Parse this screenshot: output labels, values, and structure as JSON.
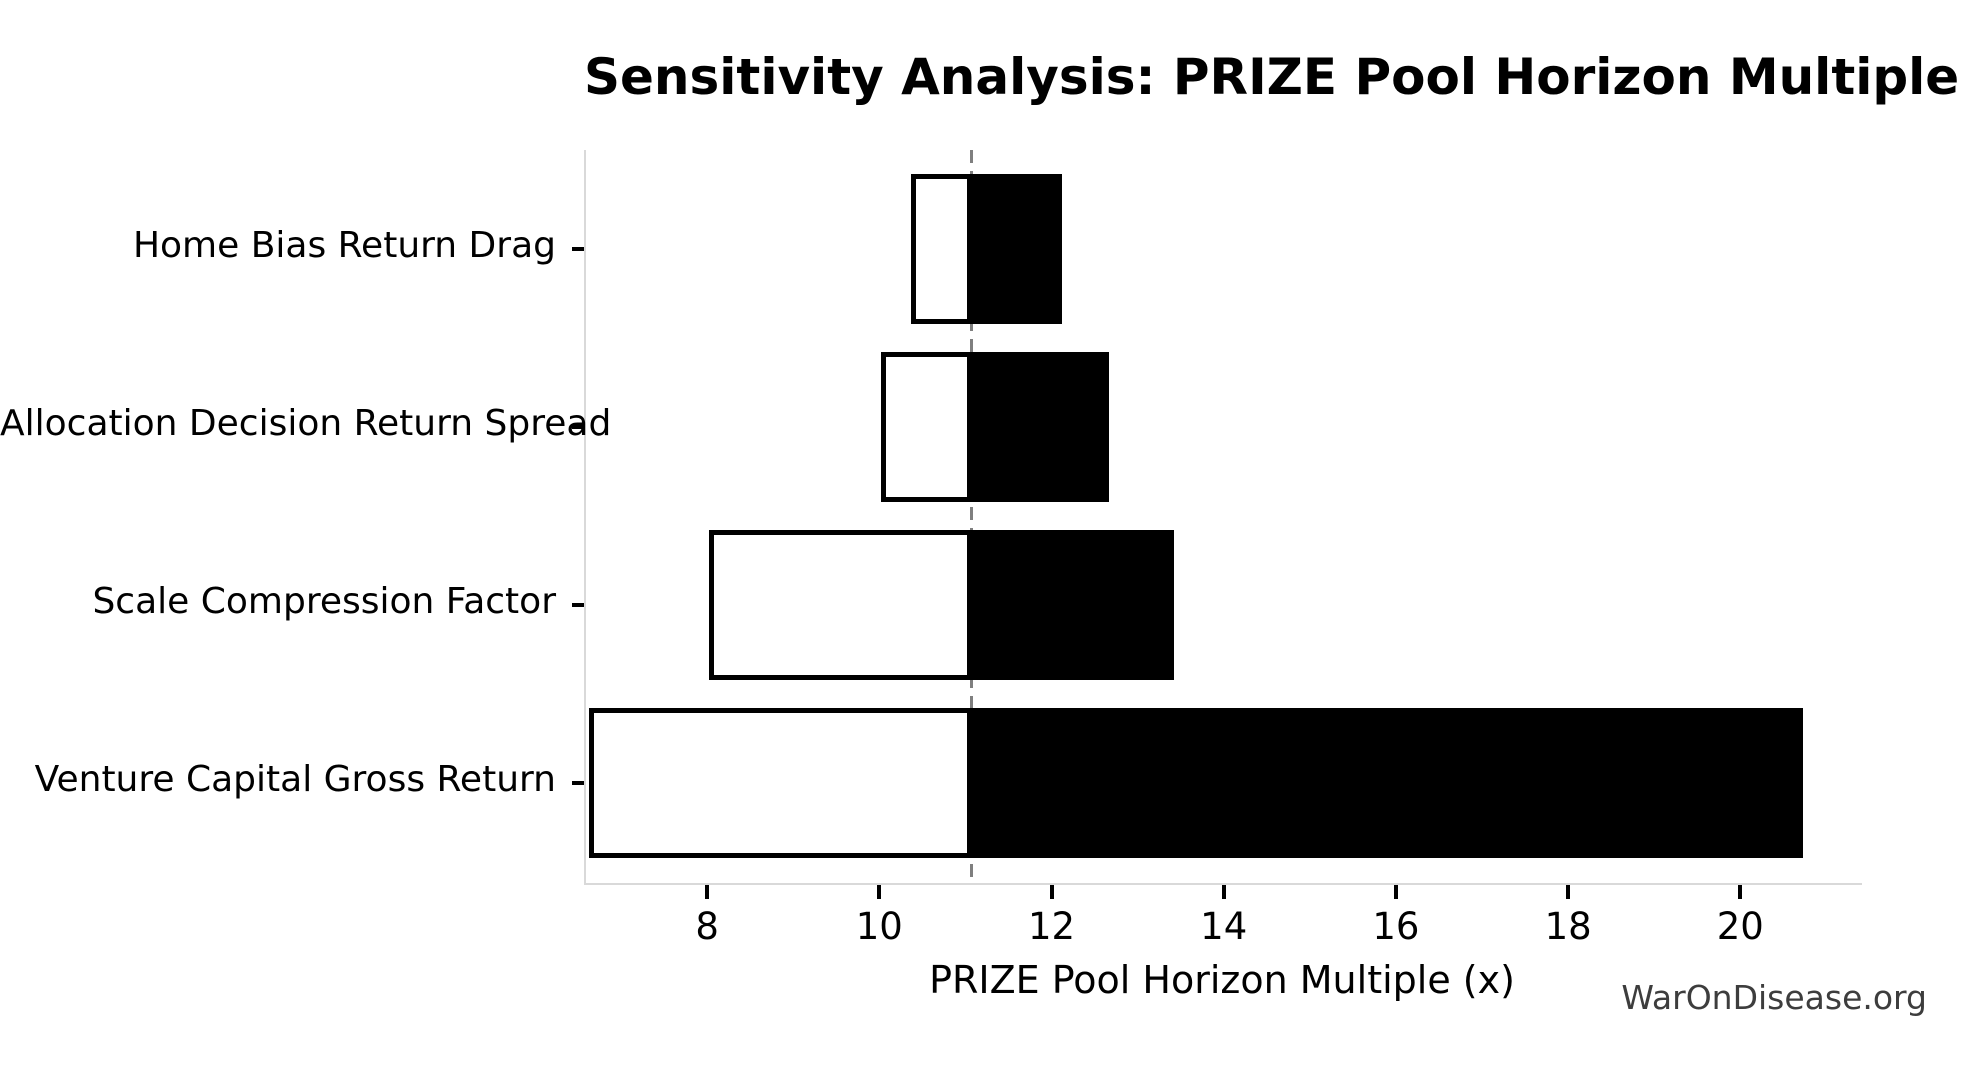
{
  "title": "Sensitivity Analysis: PRIZE Pool Horizon Multiple",
  "watermark": "WarOnDisease.org",
  "chart_data": {
    "type": "bar",
    "subtype": "tornado-sensitivity",
    "orientation": "horizontal",
    "title": "Sensitivity Analysis: PRIZE Pool Horizon Multiple",
    "xlabel": "PRIZE Pool Horizon Multiple (x)",
    "ylabel": "",
    "baseline": 11.05,
    "xlim": [
      6.57,
      21.39
    ],
    "xticks": [
      8,
      10,
      12,
      14,
      16,
      18,
      20
    ],
    "grid": false,
    "legend": "none",
    "categories_top_to_bottom": [
      "Home Bias Return Drag",
      "Allocation Decision Return Spread",
      "Scale Compression Factor",
      "Venture Capital Gross Return"
    ],
    "bars": [
      {
        "label": "Home Bias Return Drag",
        "low": 10.35,
        "high": 12.1
      },
      {
        "label": "Allocation Decision Return Spread",
        "low": 10.0,
        "high": 12.65
      },
      {
        "label": "Scale Compression Factor",
        "low": 8.0,
        "high": 13.4
      },
      {
        "label": "Venture Capital Gross Return",
        "low": 6.6,
        "high": 20.7
      }
    ],
    "colors": {
      "low_fill": "#ffffff",
      "low_border": "#000000",
      "high_fill": "#000000",
      "baseline_line": "#7f7f7f",
      "spine": "#d9d9d9",
      "tick": "#000000",
      "text": "#000000",
      "watermark": "#3d3d3d",
      "background": "#ffffff"
    }
  }
}
